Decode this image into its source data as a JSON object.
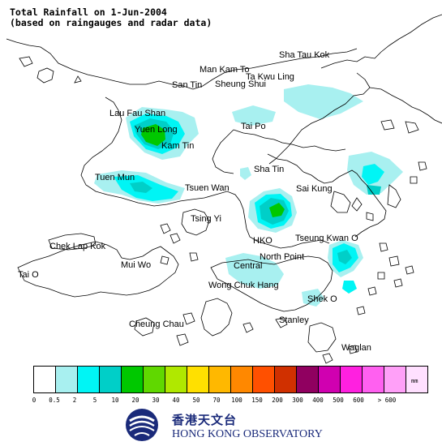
{
  "title_line1": "Total Rainfall on 1-Jun-2004",
  "title_line2": "(based on raingauges and radar data)",
  "places": [
    {
      "id": "sha-tau-kok",
      "label": "Sha Tau Kok"
    },
    {
      "id": "man-kam-to",
      "label": "Man Kam To"
    },
    {
      "id": "ta-kwu-ling",
      "label": "Ta Kwu Ling"
    },
    {
      "id": "san-tin",
      "label": "San Tin"
    },
    {
      "id": "sheung-shui",
      "label": "Sheung Shui"
    },
    {
      "id": "lau-fau-shan",
      "label": "Lau Fau Shan"
    },
    {
      "id": "yuen-long",
      "label": "Yuen Long"
    },
    {
      "id": "tai-po",
      "label": "Tai Po"
    },
    {
      "id": "kam-tin",
      "label": "Kam Tin"
    },
    {
      "id": "sha-tin",
      "label": "Sha Tin"
    },
    {
      "id": "tuen-mun",
      "label": "Tuen Mun"
    },
    {
      "id": "tsuen-wan",
      "label": "Tsuen Wan"
    },
    {
      "id": "sai-kung",
      "label": "Sai Kung"
    },
    {
      "id": "tsing-yi",
      "label": "Tsing Yi"
    },
    {
      "id": "chek-lap-kok",
      "label": "Chek Lap Kok"
    },
    {
      "id": "hko",
      "label": "HKO"
    },
    {
      "id": "tseung-kwan-o",
      "label": "Tseung Kwan O"
    },
    {
      "id": "north-point",
      "label": "North Point"
    },
    {
      "id": "mui-wo",
      "label": "Mui Wo"
    },
    {
      "id": "central",
      "label": "Central"
    },
    {
      "id": "tai-o",
      "label": "Tai O"
    },
    {
      "id": "wong-chuk-hang",
      "label": "Wong Chuk Hang"
    },
    {
      "id": "shek-o",
      "label": "Shek O"
    },
    {
      "id": "stanley",
      "label": "Stanley"
    },
    {
      "id": "cheung-chau",
      "label": "Cheung Chau"
    },
    {
      "id": "waglan",
      "label": "Waglan"
    }
  ],
  "legend": {
    "unit": "mm",
    "colors": [
      "#ffffff",
      "#a8f0f0",
      "#00f5f5",
      "#00cfc8",
      "#00c800",
      "#60d800",
      "#b0e800",
      "#ffe000",
      "#ffb800",
      "#ff8800",
      "#ff5000",
      "#d03000",
      "#900060",
      "#d000b0",
      "#ff20e0",
      "#ff60f0",
      "#ffa0f8",
      "#ffe0ff"
    ],
    "ticks": [
      "0",
      "0.5",
      "2",
      "5",
      "10",
      "20",
      "30",
      "40",
      "50",
      "70",
      "100",
      "150",
      "200",
      "300",
      "400",
      "500",
      "600",
      "> 600"
    ]
  },
  "logo": {
    "cn": "香港天文台",
    "en": "HONG KONG OBSERVATORY",
    "colors": {
      "primary": "#1a2a7a"
    }
  }
}
